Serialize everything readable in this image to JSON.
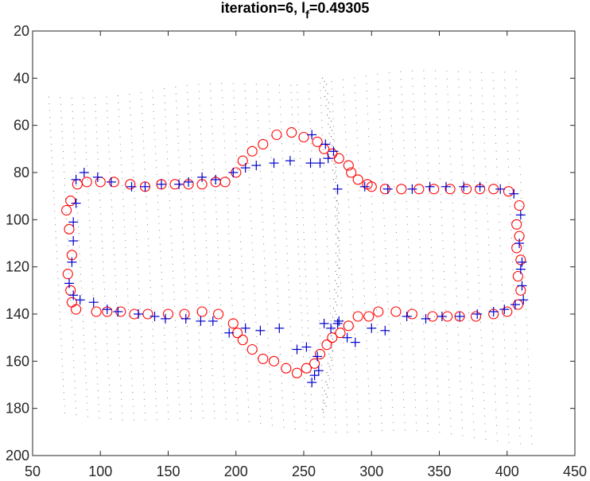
{
  "chart_data": {
    "type": "scatter",
    "title_main": "iteration=6,  l",
    "title_sub": "f",
    "title_value": "=0.49305",
    "xlim": [
      50,
      450
    ],
    "ylim": [
      20,
      200
    ],
    "y_reversed": true,
    "x_ticks": [
      50,
      100,
      150,
      200,
      250,
      300,
      350,
      400,
      450
    ],
    "y_ticks": [
      20,
      40,
      60,
      80,
      100,
      120,
      140,
      160,
      180,
      200
    ],
    "x_tick_labels": [
      "50",
      "100",
      "150",
      "200",
      "250",
      "300",
      "350",
      "400",
      "450"
    ],
    "y_tick_labels": [
      "20",
      "40",
      "60",
      "80",
      "100",
      "120",
      "140",
      "160",
      "180",
      "200"
    ],
    "grid": false,
    "colors": {
      "circles": "#ff0000",
      "crosses": "#0000cc",
      "dots": "#222222"
    },
    "series": [
      {
        "marker": "circle",
        "color": "#ff0000",
        "points": [
          [
            78,
            92
          ],
          [
            75,
            96
          ],
          [
            77,
            104
          ],
          [
            79,
            115
          ],
          [
            76,
            123
          ],
          [
            78,
            130
          ],
          [
            79,
            135
          ],
          [
            82,
            138
          ],
          [
            97,
            139
          ],
          [
            105,
            139
          ],
          [
            115,
            139
          ],
          [
            125,
            140
          ],
          [
            135,
            140
          ],
          [
            150,
            140
          ],
          [
            162,
            140
          ],
          [
            175,
            139
          ],
          [
            187,
            140
          ],
          [
            198,
            144
          ],
          [
            201,
            148
          ],
          [
            205,
            151
          ],
          [
            212,
            155
          ],
          [
            220,
            159
          ],
          [
            228,
            160
          ],
          [
            237,
            163
          ],
          [
            245,
            165
          ],
          [
            252,
            163
          ],
          [
            258,
            161
          ],
          [
            262,
            157
          ],
          [
            267,
            153
          ],
          [
            271,
            150
          ],
          [
            277,
            148
          ],
          [
            283,
            145
          ],
          [
            290,
            141
          ],
          [
            298,
            141
          ],
          [
            305,
            139
          ],
          [
            318,
            139
          ],
          [
            330,
            140
          ],
          [
            345,
            141
          ],
          [
            356,
            141
          ],
          [
            365,
            141
          ],
          [
            377,
            141
          ],
          [
            390,
            140
          ],
          [
            400,
            139
          ],
          [
            408,
            136
          ],
          [
            410,
            130
          ],
          [
            408,
            124
          ],
          [
            410,
            117
          ],
          [
            407,
            112
          ],
          [
            409,
            107
          ],
          [
            407,
            102
          ],
          [
            409,
            94
          ],
          [
            401,
            88
          ],
          [
            390,
            87
          ],
          [
            380,
            87
          ],
          [
            370,
            87
          ],
          [
            358,
            87
          ],
          [
            346,
            87
          ],
          [
            335,
            87
          ],
          [
            322,
            87
          ],
          [
            310,
            87
          ],
          [
            300,
            86
          ],
          [
            297,
            85
          ],
          [
            290,
            83
          ],
          [
            285,
            80
          ],
          [
            283,
            77
          ],
          [
            276,
            74
          ],
          [
            271,
            72
          ],
          [
            265,
            70
          ],
          [
            260,
            67
          ],
          [
            250,
            65
          ],
          [
            241,
            63
          ],
          [
            230,
            64
          ],
          [
            220,
            68
          ],
          [
            212,
            71
          ],
          [
            205,
            75
          ],
          [
            200,
            80
          ],
          [
            192,
            84
          ],
          [
            185,
            84
          ],
          [
            175,
            85
          ],
          [
            165,
            85
          ],
          [
            155,
            85
          ],
          [
            145,
            85
          ],
          [
            133,
            86
          ],
          [
            122,
            85
          ],
          [
            110,
            84
          ],
          [
            100,
            84
          ],
          [
            90,
            84
          ],
          [
            83,
            85
          ]
        ]
      },
      {
        "marker": "cross",
        "color": "#0000cc",
        "points": [
          [
            77,
            127
          ],
          [
            79,
            118
          ],
          [
            80,
            109
          ],
          [
            80,
            101
          ],
          [
            82,
            93
          ],
          [
            82,
            83
          ],
          [
            88,
            80
          ],
          [
            98,
            82
          ],
          [
            108,
            84
          ],
          [
            123,
            86
          ],
          [
            133,
            86
          ],
          [
            145,
            85
          ],
          [
            158,
            85
          ],
          [
            165,
            84
          ],
          [
            175,
            82
          ],
          [
            185,
            83
          ],
          [
            198,
            80
          ],
          [
            207,
            78
          ],
          [
            215,
            77
          ],
          [
            228,
            76
          ],
          [
            240,
            75
          ],
          [
            255,
            76
          ],
          [
            262,
            76
          ],
          [
            268,
            74
          ],
          [
            272,
            71
          ],
          [
            266,
            68
          ],
          [
            256,
            64
          ],
          [
            275,
            87
          ],
          [
            295,
            86
          ],
          [
            312,
            87
          ],
          [
            330,
            87
          ],
          [
            343,
            86
          ],
          [
            355,
            86
          ],
          [
            368,
            86
          ],
          [
            380,
            86
          ],
          [
            395,
            87
          ],
          [
            405,
            89
          ],
          [
            410,
            98
          ],
          [
            409,
            110
          ],
          [
            411,
            118
          ],
          [
            410,
            121
          ],
          [
            411,
            128
          ],
          [
            412,
            134
          ],
          [
            406,
            136
          ],
          [
            398,
            138
          ],
          [
            390,
            139
          ],
          [
            378,
            140
          ],
          [
            365,
            141
          ],
          [
            352,
            141
          ],
          [
            340,
            142
          ],
          [
            326,
            141
          ],
          [
            310,
            147
          ],
          [
            300,
            146
          ],
          [
            288,
            152
          ],
          [
            282,
            150
          ],
          [
            276,
            143
          ],
          [
            275,
            144
          ],
          [
            270,
            146
          ],
          [
            265,
            144
          ],
          [
            260,
            158
          ],
          [
            261,
            164
          ],
          [
            258,
            166
          ],
          [
            256,
            169
          ],
          [
            252,
            154
          ],
          [
            245,
            155
          ],
          [
            232,
            146
          ],
          [
            218,
            147
          ],
          [
            207,
            146
          ],
          [
            195,
            148
          ],
          [
            183,
            143
          ],
          [
            174,
            143
          ],
          [
            163,
            142
          ],
          [
            148,
            142
          ],
          [
            140,
            141
          ],
          [
            128,
            140
          ],
          [
            113,
            139
          ],
          [
            105,
            138
          ],
          [
            95,
            135
          ],
          [
            85,
            134
          ],
          [
            80,
            132
          ]
        ]
      }
    ]
  }
}
